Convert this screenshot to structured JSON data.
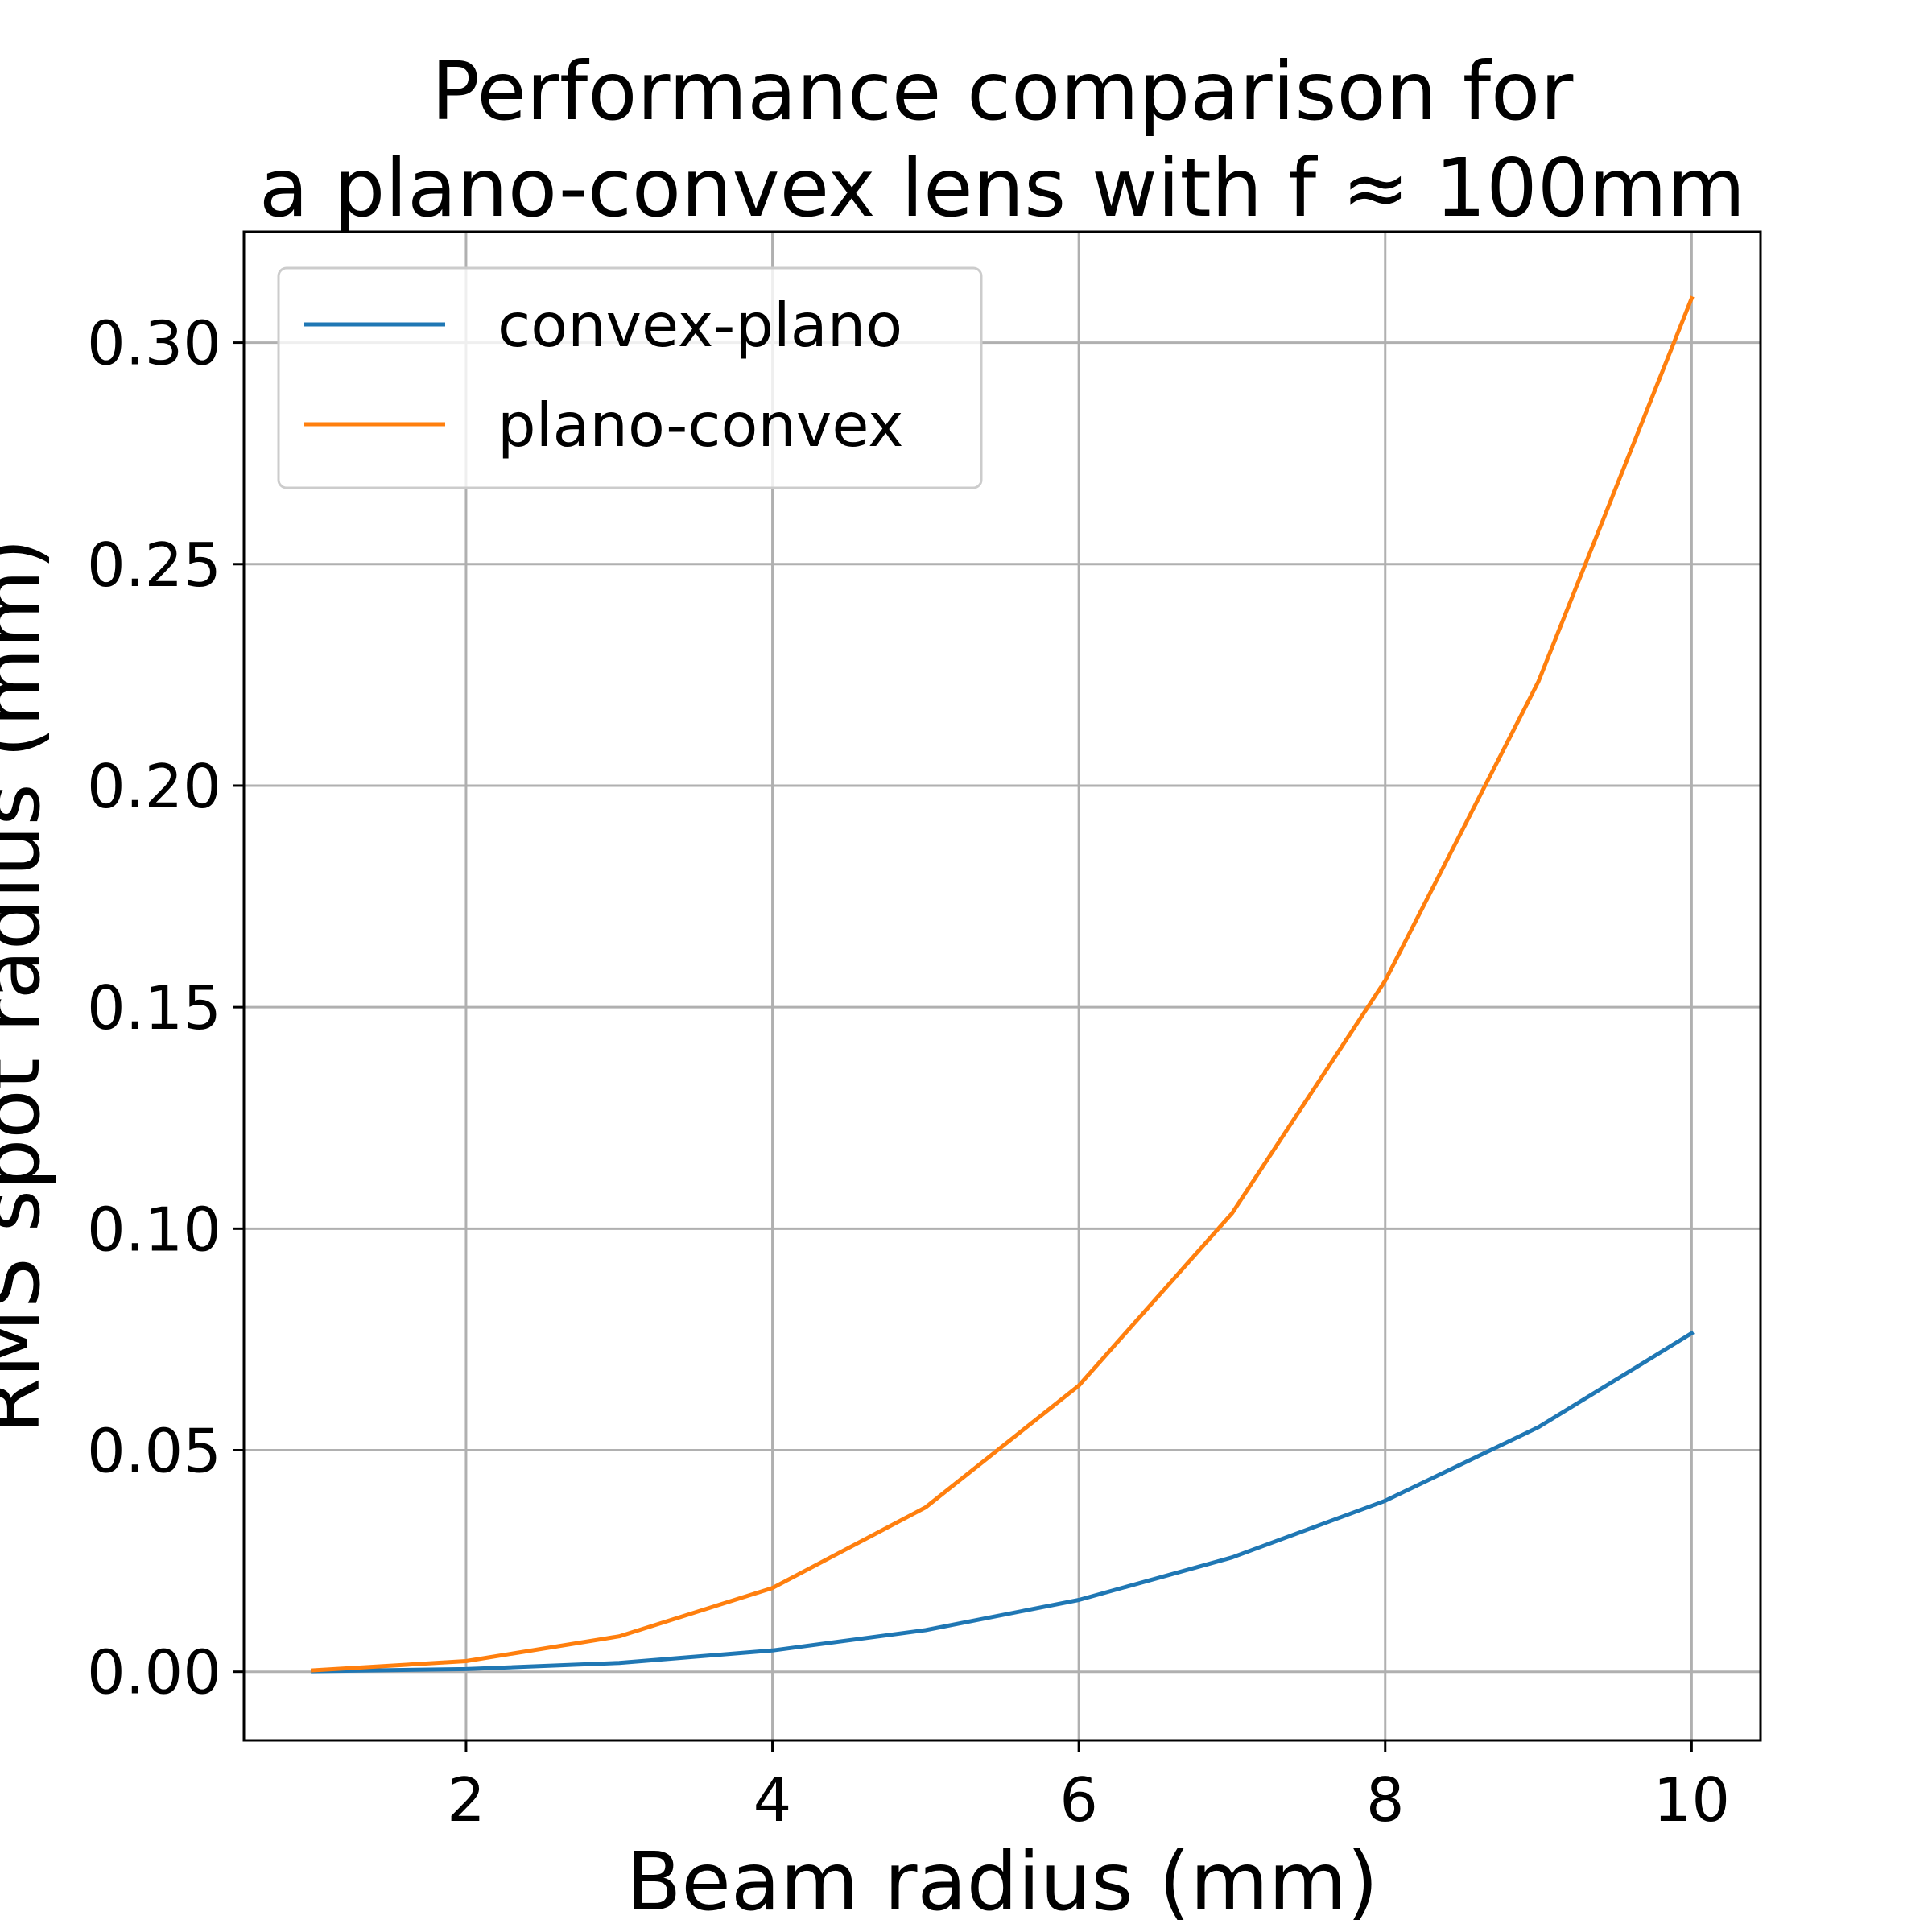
{
  "chart_data": {
    "type": "line",
    "title": [
      "Performance comparison for",
      "a plano-convex lens with f ≈ 100mm"
    ],
    "xlabel": "Beam radius (mm)",
    "ylabel": "RMS spot radius (mm)",
    "xlim": [
      0.55,
      10.45
    ],
    "ylim": [
      -0.0155,
      0.325
    ],
    "xticks": [
      2,
      4,
      6,
      8,
      10
    ],
    "xtick_labels": [
      "2",
      "4",
      "6",
      "8",
      "10"
    ],
    "yticks": [
      0.0,
      0.05,
      0.1,
      0.15,
      0.2,
      0.25,
      0.3
    ],
    "ytick_labels": [
      "0.00",
      "0.05",
      "0.10",
      "0.15",
      "0.20",
      "0.25",
      "0.30"
    ],
    "grid": true,
    "legend_position": "top-left",
    "x": [
      1,
      2,
      3,
      4,
      5,
      6,
      7,
      8,
      9,
      10
    ],
    "series": [
      {
        "name": "convex-plano",
        "color": "#1f77b4",
        "values": [
          0.0001,
          0.0006,
          0.002,
          0.0048,
          0.0094,
          0.0162,
          0.0258,
          0.0386,
          0.0552,
          0.0764
        ]
      },
      {
        "name": "plano-convex",
        "color": "#ff7f0e",
        "values": [
          0.0003,
          0.0024,
          0.008,
          0.0189,
          0.0371,
          0.0646,
          0.1035,
          0.156,
          0.2235,
          0.31
        ]
      }
    ]
  }
}
